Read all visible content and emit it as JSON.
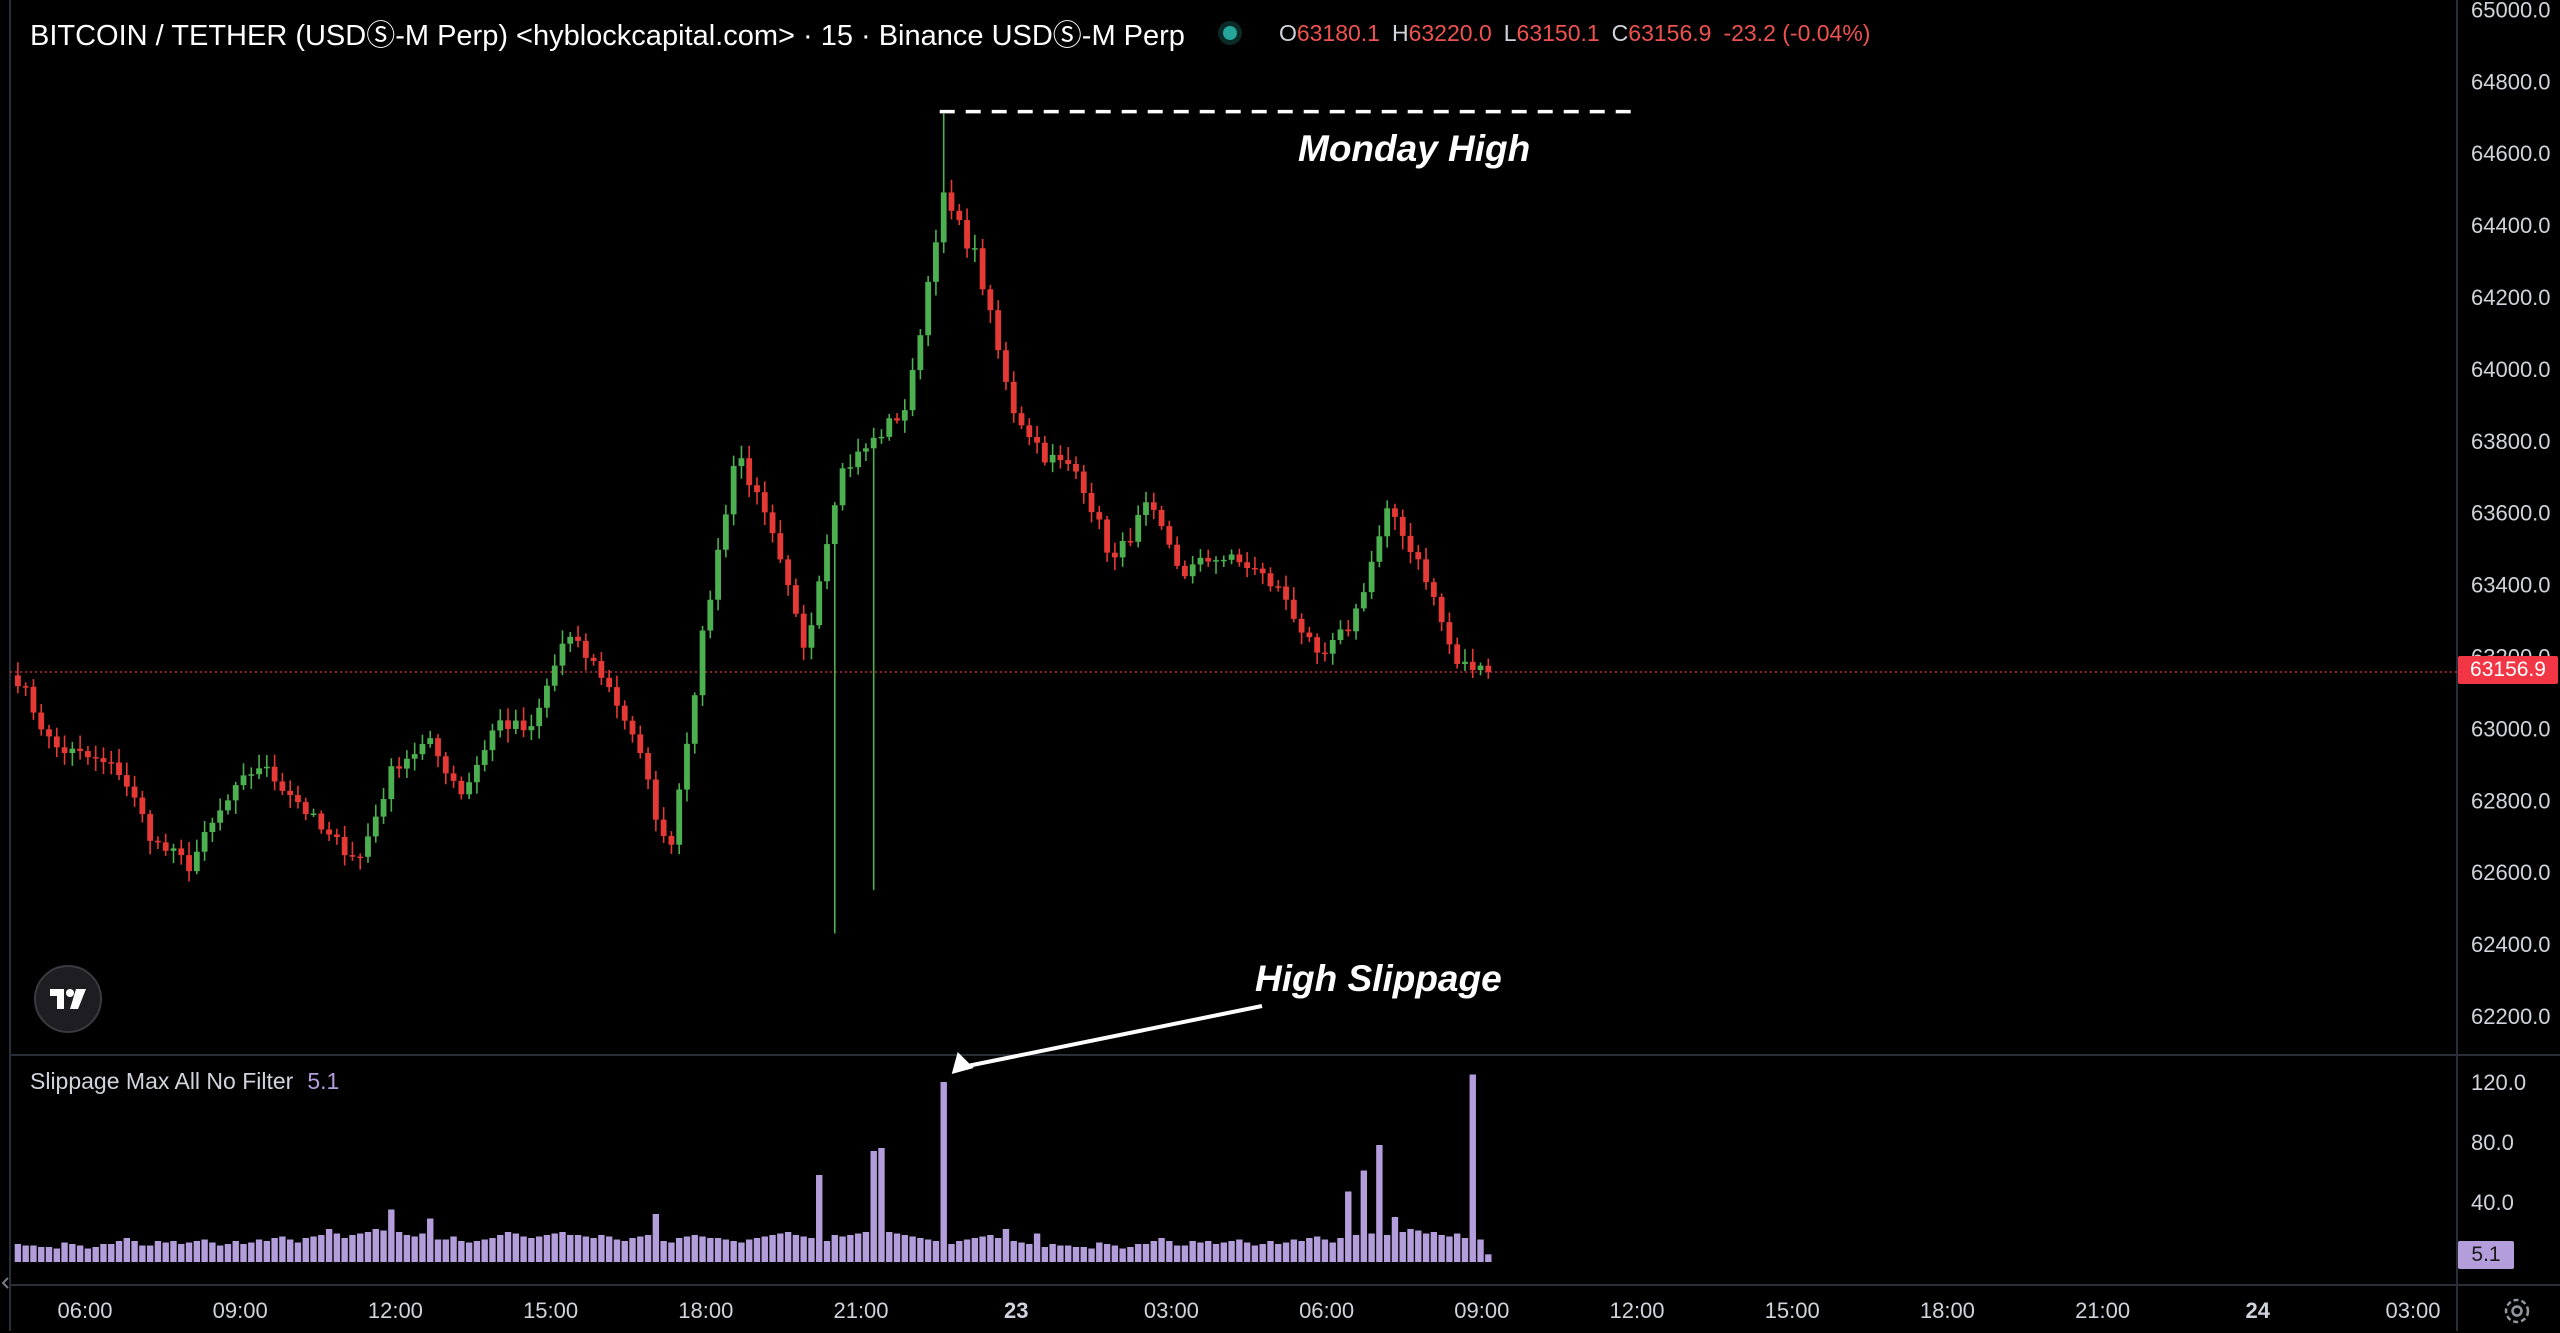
{
  "header": {
    "symbol": "BITCOIN / TETHER (USDⓈ-M Perp) <hyblockcapital.com> · 15 · Binance USDⓈ-M Perp",
    "open_key": "O",
    "open": "63180.1",
    "high_key": "H",
    "high": "63220.0",
    "low_key": "L",
    "low": "63150.1",
    "close_key": "C",
    "close": "63156.9",
    "change": "-23.2 (-0.04%)"
  },
  "indicator": {
    "title": "Slippage Max All No Filter",
    "value": "5.1"
  },
  "annotations": {
    "monday_high": "Monday High",
    "high_slippage": "High Slippage"
  },
  "last_price_label": "63156.9",
  "last_slippage_label": "5.1",
  "icons": {
    "logo": "tradingview-logo-icon",
    "settings": "gear-icon"
  },
  "colors": {
    "up": "#4caf50",
    "down": "#e53935",
    "slippage": "#b39ddb",
    "last_price": "#f23645"
  },
  "chart_data": [
    {
      "type": "candlestick",
      "interval": "15",
      "ylim": [
        62000,
        65000
      ],
      "y_ticks": [
        "65000.0",
        "64800.0",
        "64600.0",
        "64400.0",
        "64200.0",
        "64000.0",
        "63800.0",
        "63600.0",
        "63400.0",
        "63200.0",
        "63000.0",
        "62800.0",
        "62600.0",
        "62400.0",
        "62200.0"
      ],
      "x_ticks": [
        "06:00",
        "09:00",
        "12:00",
        "15:00",
        "18:00",
        "21:00",
        "23",
        "03:00",
        "06:00",
        "09:00",
        "12:00",
        "15:00",
        "18:00",
        "21:00",
        "24",
        "03:00"
      ],
      "waypoints": [
        63140,
        62950,
        62920,
        62880,
        62680,
        62620,
        62780,
        62900,
        62820,
        62700,
        62640,
        62900,
        62960,
        62820,
        63020,
        62990,
        63260,
        63160,
        62980,
        62640,
        63250,
        63780,
        63540,
        63220,
        63710,
        63800,
        63900,
        64480,
        64310,
        63900,
        63760,
        63710,
        63460,
        63620,
        63430,
        63480,
        63450,
        63370,
        63180,
        63300,
        63600,
        63460,
        63180,
        63156.9
      ],
      "last_price": 63156.9,
      "reference_line": {
        "value": 64710,
        "label": "Monday High"
      }
    },
    {
      "type": "bar",
      "title": "Slippage Max All No Filter",
      "ylim": [
        0,
        130
      ],
      "y_ticks": [
        "120.0",
        "80.0",
        "40.0"
      ],
      "base_values": [
        12,
        11,
        11,
        10,
        10,
        9,
        13,
        12,
        11,
        9,
        10,
        12,
        12,
        14,
        16,
        14,
        11,
        11,
        14,
        13,
        14,
        12,
        13,
        14,
        15,
        13,
        11,
        12,
        14,
        12,
        13,
        15,
        14,
        16,
        17,
        15,
        13,
        16,
        17,
        18,
        22,
        19,
        16,
        18,
        19,
        20,
        22,
        21,
        19,
        20,
        18,
        17,
        19,
        16,
        15,
        15,
        17,
        14,
        13,
        14,
        15,
        16,
        18,
        20,
        19,
        17,
        16,
        17,
        18,
        19,
        20,
        18,
        18,
        17,
        16,
        18,
        17,
        15,
        14,
        16,
        17,
        18,
        15,
        14,
        13,
        16,
        17,
        18,
        17,
        16,
        16,
        15,
        14,
        13,
        15,
        16,
        17,
        18,
        19,
        20,
        18,
        17,
        16,
        15,
        14,
        15,
        17,
        18,
        19,
        20,
        21,
        22,
        20,
        19,
        18,
        17,
        16,
        15,
        14,
        13,
        12,
        14,
        15,
        16,
        17,
        18,
        16,
        15,
        14,
        13,
        12,
        11,
        10
      ],
      "spikes": {
        "48": 35,
        "53": 29,
        "82": 32,
        "103": 58,
        "105": 18,
        "110": 74,
        "111": 76,
        "119": 120,
        "127": 22,
        "131": 19,
        "171": 47,
        "173": 61,
        "175": 78,
        "177": 30,
        "187": 125
      },
      "last_value": 5.1
    }
  ]
}
